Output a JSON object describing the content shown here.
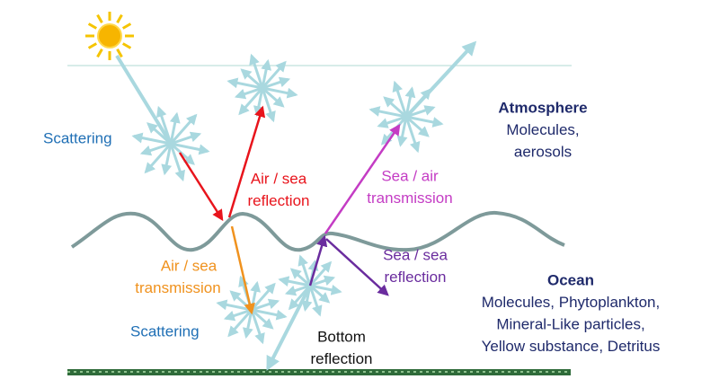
{
  "labels": [
    {
      "lines": [
        "Scattering"
      ]
    },
    {
      "lines": [
        "Air / sea",
        "reflection"
      ]
    },
    {
      "lines": [
        "Sea / air",
        "transmission"
      ]
    },
    {
      "lines": [
        "Atmosphere",
        "Molecules,",
        "aerosols"
      ]
    },
    {
      "lines": [
        "Air / sea",
        "transmission"
      ]
    },
    {
      "lines": [
        "Sea / sea",
        "reflection"
      ]
    },
    {
      "lines": [
        "Scattering"
      ]
    },
    {
      "lines": [
        "Bottom",
        "reflection"
      ]
    },
    {
      "lines": [
        "Ocean",
        "Molecules, Phytoplankton,",
        "Mineral-Like particles,",
        "Yellow substance, Detritus"
      ]
    }
  ]
}
